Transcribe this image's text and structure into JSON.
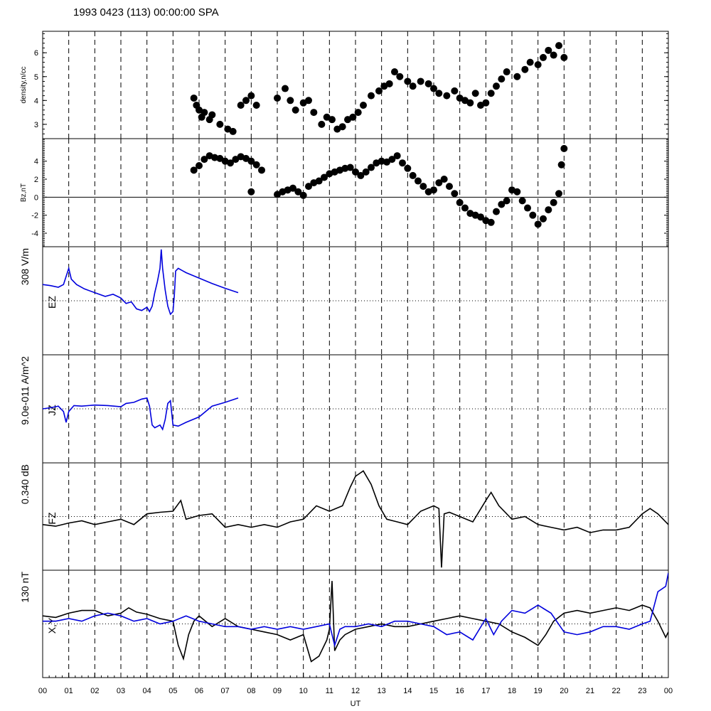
{
  "header": {
    "title": "1993 0423 (113) 00:00:00 SPA"
  },
  "x_axis": {
    "label": "UT",
    "ticks": [
      "00",
      "01",
      "02",
      "03",
      "04",
      "05",
      "06",
      "07",
      "08",
      "09",
      "10",
      "11",
      "12",
      "13",
      "14",
      "15",
      "16",
      "17",
      "18",
      "19",
      "20",
      "21",
      "22",
      "23",
      "00"
    ]
  },
  "chart_data": [
    {
      "type": "scatter",
      "panel": "density",
      "ylabel": "density,n/cc",
      "ylim": [
        2.4,
        6.9
      ],
      "yticks": [
        "3",
        "4",
        "5",
        "6"
      ],
      "series": [
        {
          "color": "#000000",
          "points": [
            [
              5.8,
              4.1
            ],
            [
              5.9,
              3.8
            ],
            [
              6.0,
              3.6
            ],
            [
              6.1,
              3.3
            ],
            [
              6.2,
              3.5
            ],
            [
              6.4,
              3.2
            ],
            [
              6.5,
              3.4
            ],
            [
              6.8,
              3.0
            ],
            [
              7.1,
              2.8
            ],
            [
              7.3,
              2.7
            ],
            [
              7.6,
              3.8
            ],
            [
              7.8,
              4.0
            ],
            [
              8.0,
              4.2
            ],
            [
              8.2,
              3.8
            ],
            [
              9.0,
              4.1
            ],
            [
              9.3,
              4.5
            ],
            [
              9.5,
              4.0
            ],
            [
              9.7,
              3.6
            ],
            [
              10.0,
              3.9
            ],
            [
              10.2,
              4.0
            ],
            [
              10.4,
              3.5
            ],
            [
              10.7,
              3.0
            ],
            [
              10.9,
              3.3
            ],
            [
              11.1,
              3.2
            ],
            [
              11.3,
              2.8
            ],
            [
              11.5,
              2.9
            ],
            [
              11.7,
              3.2
            ],
            [
              11.9,
              3.3
            ],
            [
              12.1,
              3.5
            ],
            [
              12.3,
              3.8
            ],
            [
              12.6,
              4.2
            ],
            [
              12.9,
              4.4
            ],
            [
              13.1,
              4.6
            ],
            [
              13.3,
              4.7
            ],
            [
              13.5,
              5.2
            ],
            [
              13.7,
              5.0
            ],
            [
              14.0,
              4.8
            ],
            [
              14.2,
              4.6
            ],
            [
              14.5,
              4.8
            ],
            [
              14.8,
              4.7
            ],
            [
              15.0,
              4.5
            ],
            [
              15.2,
              4.3
            ],
            [
              15.5,
              4.2
            ],
            [
              15.8,
              4.4
            ],
            [
              16.0,
              4.1
            ],
            [
              16.2,
              4.0
            ],
            [
              16.4,
              3.9
            ],
            [
              16.6,
              4.3
            ],
            [
              16.8,
              3.8
            ],
            [
              17.0,
              3.9
            ],
            [
              17.2,
              4.3
            ],
            [
              17.4,
              4.6
            ],
            [
              17.6,
              4.9
            ],
            [
              17.8,
              5.2
            ],
            [
              18.2,
              5.0
            ],
            [
              18.5,
              5.3
            ],
            [
              18.7,
              5.6
            ],
            [
              19.0,
              5.5
            ],
            [
              19.2,
              5.8
            ],
            [
              19.4,
              6.1
            ],
            [
              19.6,
              5.9
            ],
            [
              19.8,
              6.3
            ],
            [
              20.0,
              5.8
            ]
          ]
        }
      ]
    },
    {
      "type": "scatter",
      "panel": "bz",
      "ylabel": "Bz,nT",
      "ylim": [
        -5.5,
        6.5
      ],
      "yticks": [
        "-4",
        "-2",
        "0",
        "2",
        "4"
      ],
      "series": [
        {
          "color": "#000000",
          "points": [
            [
              5.8,
              3.0
            ],
            [
              6.0,
              3.5
            ],
            [
              6.2,
              4.2
            ],
            [
              6.4,
              4.6
            ],
            [
              6.6,
              4.4
            ],
            [
              6.8,
              4.3
            ],
            [
              7.0,
              4.0
            ],
            [
              7.2,
              3.8
            ],
            [
              7.4,
              4.2
            ],
            [
              7.6,
              4.5
            ],
            [
              7.8,
              4.3
            ],
            [
              8.0,
              4.0
            ],
            [
              8.2,
              3.6
            ],
            [
              8.4,
              3.0
            ],
            [
              8.0,
              0.6
            ],
            [
              9.0,
              0.3
            ],
            [
              9.2,
              0.6
            ],
            [
              9.4,
              0.8
            ],
            [
              9.6,
              1.0
            ],
            [
              9.8,
              0.6
            ],
            [
              10.0,
              0.2
            ],
            [
              10.2,
              1.2
            ],
            [
              10.4,
              1.6
            ],
            [
              10.6,
              1.8
            ],
            [
              10.8,
              2.2
            ],
            [
              11.0,
              2.6
            ],
            [
              11.2,
              2.8
            ],
            [
              11.4,
              3.0
            ],
            [
              11.6,
              3.2
            ],
            [
              11.8,
              3.3
            ],
            [
              12.0,
              2.8
            ],
            [
              12.2,
              2.4
            ],
            [
              12.4,
              2.8
            ],
            [
              12.6,
              3.3
            ],
            [
              12.8,
              3.8
            ],
            [
              13.0,
              4.0
            ],
            [
              13.2,
              3.9
            ],
            [
              13.4,
              4.2
            ],
            [
              13.6,
              4.6
            ],
            [
              13.8,
              3.8
            ],
            [
              14.0,
              3.2
            ],
            [
              14.2,
              2.4
            ],
            [
              14.4,
              1.8
            ],
            [
              14.6,
              1.2
            ],
            [
              14.8,
              0.6
            ],
            [
              15.0,
              0.8
            ],
            [
              15.2,
              1.6
            ],
            [
              15.4,
              2.0
            ],
            [
              15.6,
              1.2
            ],
            [
              15.8,
              0.4
            ],
            [
              16.0,
              -0.6
            ],
            [
              16.2,
              -1.2
            ],
            [
              16.4,
              -1.8
            ],
            [
              16.6,
              -2.0
            ],
            [
              16.8,
              -2.2
            ],
            [
              17.0,
              -2.6
            ],
            [
              17.2,
              -2.8
            ],
            [
              17.4,
              -1.6
            ],
            [
              17.6,
              -0.8
            ],
            [
              17.8,
              -0.4
            ],
            [
              18.0,
              0.8
            ],
            [
              18.2,
              0.6
            ],
            [
              18.4,
              -0.4
            ],
            [
              18.6,
              -1.2
            ],
            [
              18.8,
              -2.0
            ],
            [
              19.0,
              -3.0
            ],
            [
              19.2,
              -2.4
            ],
            [
              19.4,
              -1.4
            ],
            [
              19.6,
              -0.6
            ],
            [
              19.8,
              0.4
            ],
            [
              19.9,
              3.6
            ],
            [
              20.0,
              5.4
            ]
          ]
        }
      ]
    },
    {
      "type": "line",
      "panel": "ez",
      "scale_label": "308 V/m",
      "ylabel": "EZ",
      "ylim": [
        -1.0,
        1.0
      ],
      "series": [
        {
          "color": "#0000dd",
          "x": [
            0.0,
            0.3,
            0.6,
            0.8,
            0.9,
            1.0,
            1.1,
            1.3,
            1.6,
            2.0,
            2.4,
            2.7,
            3.0,
            3.2,
            3.4,
            3.6,
            3.8,
            4.0,
            4.1,
            4.2,
            4.3,
            4.4,
            4.5,
            4.55,
            4.6,
            4.7,
            4.8,
            4.9,
            5.0,
            5.05,
            5.1,
            5.2,
            5.5,
            6.0,
            6.5,
            7.0,
            7.5
          ],
          "y": [
            0.3,
            0.28,
            0.25,
            0.3,
            0.45,
            0.6,
            0.4,
            0.3,
            0.22,
            0.15,
            0.08,
            0.12,
            0.05,
            -0.05,
            -0.02,
            -0.15,
            -0.18,
            -0.12,
            -0.2,
            -0.1,
            0.15,
            0.35,
            0.6,
            0.95,
            0.6,
            0.2,
            -0.1,
            -0.25,
            -0.2,
            0.1,
            0.55,
            0.6,
            0.52,
            0.42,
            0.32,
            0.23,
            0.15
          ]
        }
      ]
    },
    {
      "type": "line",
      "panel": "jz",
      "scale_label": "9.0e-011 A/m^2",
      "ylabel": "JZ",
      "ylim": [
        -1.0,
        1.0
      ],
      "series": [
        {
          "color": "#0000dd",
          "x": [
            0.0,
            0.3,
            0.6,
            0.8,
            0.9,
            1.0,
            1.2,
            1.5,
            2.0,
            2.5,
            3.0,
            3.2,
            3.5,
            3.8,
            4.0,
            4.1,
            4.2,
            4.3,
            4.5,
            4.6,
            4.7,
            4.8,
            4.9,
            5.0,
            5.2,
            5.5,
            6.0,
            6.5,
            7.0,
            7.5
          ],
          "y": [
            0.0,
            0.02,
            0.05,
            -0.05,
            -0.25,
            -0.05,
            0.06,
            0.05,
            0.07,
            0.06,
            0.04,
            0.1,
            0.12,
            0.18,
            0.2,
            0.05,
            -0.3,
            -0.35,
            -0.3,
            -0.38,
            -0.2,
            0.1,
            0.15,
            -0.3,
            -0.32,
            -0.25,
            -0.15,
            0.05,
            0.12,
            0.2
          ]
        }
      ]
    },
    {
      "type": "line",
      "panel": "fz",
      "scale_label": "0.340 dB",
      "ylabel": "FZ",
      "ylim": [
        -1.0,
        1.0
      ],
      "series": [
        {
          "color": "#000000",
          "x": [
            0,
            0.5,
            1.0,
            1.5,
            2.0,
            2.5,
            3.0,
            3.5,
            4.0,
            4.5,
            5.0,
            5.3,
            5.5,
            6.0,
            6.5,
            7.0,
            7.5,
            8.0,
            8.5,
            9.0,
            9.5,
            10.0,
            10.5,
            11.0,
            11.5,
            11.8,
            12.0,
            12.3,
            12.6,
            12.9,
            13.2,
            13.6,
            14.0,
            14.5,
            15.0,
            15.2,
            15.3,
            15.4,
            15.6,
            16.0,
            16.5,
            17.0,
            17.2,
            17.5,
            18.0,
            18.5,
            19.0,
            19.5,
            20.0,
            20.5,
            21.0,
            21.5,
            22.0,
            22.5,
            23.0,
            23.3,
            23.6,
            24.0
          ],
          "y": [
            -0.15,
            -0.18,
            -0.12,
            -0.08,
            -0.15,
            -0.1,
            -0.05,
            -0.15,
            0.05,
            0.08,
            0.1,
            0.3,
            -0.05,
            0.02,
            0.05,
            -0.2,
            -0.15,
            -0.2,
            -0.15,
            -0.2,
            -0.1,
            -0.05,
            0.2,
            0.1,
            0.2,
            0.55,
            0.75,
            0.85,
            0.6,
            0.2,
            -0.05,
            -0.1,
            -0.15,
            0.1,
            0.2,
            0.15,
            -0.95,
            0.05,
            0.08,
            0.0,
            -0.1,
            0.3,
            0.45,
            0.2,
            -0.05,
            0.0,
            -0.15,
            -0.2,
            -0.25,
            -0.2,
            -0.3,
            -0.25,
            -0.25,
            -0.2,
            0.05,
            0.15,
            0.05,
            -0.15
          ]
        }
      ]
    },
    {
      "type": "line",
      "panel": "xy",
      "scale_label": "130 nT",
      "ylabel": "X,Y",
      "ylim": [
        -1.0,
        1.0
      ],
      "series": [
        {
          "name": "X",
          "color": "#000000",
          "x": [
            0,
            0.5,
            1.0,
            1.5,
            2.0,
            2.5,
            3.0,
            3.3,
            3.6,
            4.0,
            4.5,
            5.0,
            5.2,
            5.4,
            5.6,
            5.8,
            6.0,
            6.5,
            7.0,
            7.5,
            8.0,
            8.5,
            9.0,
            9.5,
            10.0,
            10.3,
            10.6,
            10.9,
            11.0,
            11.1,
            11.2,
            11.4,
            11.6,
            12.0,
            12.5,
            13.0,
            13.5,
            14.0,
            14.5,
            15.0,
            15.5,
            16.0,
            16.5,
            17.0,
            17.5,
            18.0,
            18.5,
            19.0,
            19.3,
            19.6,
            20.0,
            20.5,
            21.0,
            21.5,
            22.0,
            22.5,
            23.0,
            23.3,
            23.6,
            23.9,
            24.0
          ],
          "y": [
            0.15,
            0.12,
            0.2,
            0.25,
            0.25,
            0.15,
            0.2,
            0.3,
            0.22,
            0.18,
            0.1,
            0.05,
            -0.4,
            -0.65,
            -0.2,
            0.05,
            0.15,
            -0.05,
            0.1,
            -0.05,
            -0.1,
            -0.15,
            -0.2,
            -0.3,
            -0.2,
            -0.7,
            -0.6,
            -0.3,
            -0.1,
            0.8,
            -0.5,
            -0.3,
            -0.2,
            -0.1,
            -0.05,
            0.0,
            -0.05,
            -0.05,
            0.0,
            0.05,
            0.1,
            0.15,
            0.1,
            0.05,
            0.0,
            -0.15,
            -0.25,
            -0.4,
            -0.2,
            0.05,
            0.2,
            0.25,
            0.2,
            0.25,
            0.3,
            0.25,
            0.35,
            0.3,
            0.05,
            -0.25,
            -0.15
          ]
        },
        {
          "name": "Y",
          "color": "#0000dd",
          "x": [
            0,
            0.5,
            1.0,
            1.5,
            2.0,
            2.5,
            3.0,
            3.5,
            4.0,
            4.5,
            5.0,
            5.5,
            6.0,
            6.5,
            7.0,
            7.5,
            8.0,
            8.5,
            9.0,
            9.5,
            10.0,
            10.5,
            11.0,
            11.2,
            11.4,
            11.6,
            12.0,
            12.5,
            13.0,
            13.5,
            14.0,
            14.5,
            15.0,
            15.5,
            16.0,
            16.5,
            17.0,
            17.3,
            17.6,
            18.0,
            18.5,
            19.0,
            19.5,
            20.0,
            20.5,
            21.0,
            21.5,
            22.0,
            22.5,
            23.0,
            23.3,
            23.6,
            23.9,
            24.0
          ],
          "y": [
            0.05,
            0.05,
            0.1,
            0.05,
            0.15,
            0.2,
            0.15,
            0.05,
            0.1,
            0.0,
            0.05,
            0.15,
            0.05,
            0.0,
            -0.05,
            -0.05,
            -0.1,
            -0.05,
            -0.1,
            -0.05,
            -0.1,
            -0.05,
            0.0,
            -0.4,
            -0.1,
            -0.05,
            -0.05,
            0.0,
            -0.05,
            0.05,
            0.05,
            0.0,
            -0.05,
            -0.2,
            -0.15,
            -0.3,
            0.1,
            -0.2,
            0.05,
            0.25,
            0.2,
            0.35,
            0.2,
            -0.15,
            -0.2,
            -0.15,
            -0.05,
            -0.05,
            -0.1,
            0.0,
            0.05,
            0.6,
            0.7,
            0.95
          ]
        }
      ]
    }
  ]
}
